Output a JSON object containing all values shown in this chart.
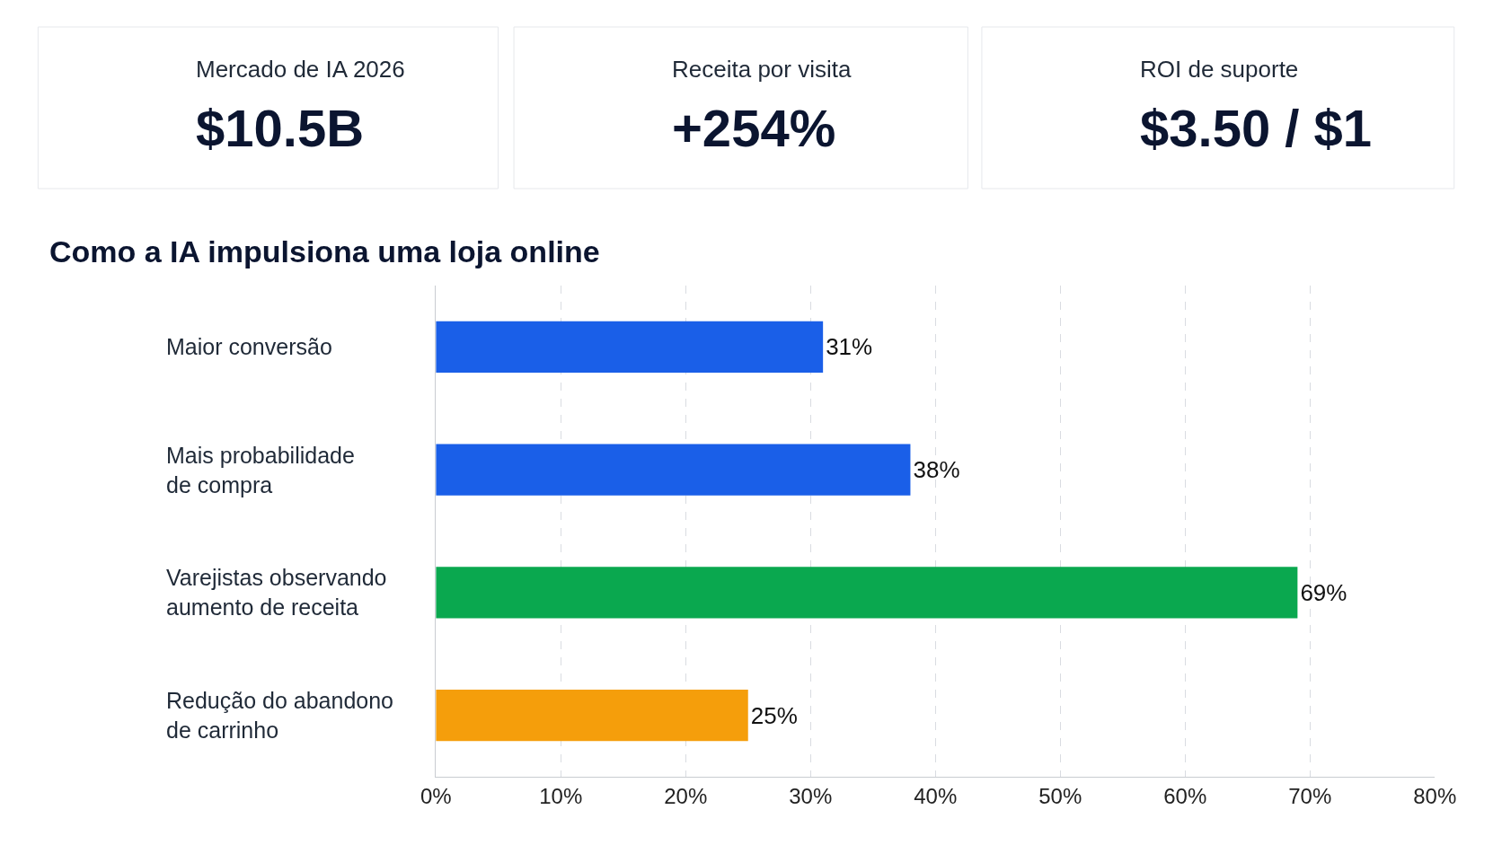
{
  "chart_data": [
    {
      "type": "other",
      "title": "Mercado de IA 2026",
      "annotations": [
        "$10.5B"
      ]
    },
    {
      "type": "other",
      "title": "Receita por visita",
      "annotations": [
        "+254%"
      ]
    },
    {
      "type": "other",
      "title": "ROI de suporte",
      "annotations": [
        "$3.50 / $1"
      ]
    },
    {
      "type": "bar",
      "orientation": "horizontal",
      "title": "Como a IA impulsiona uma loja online",
      "categories": [
        "Maior conversão",
        "Mais probabilidade\nde compra",
        "Varejistas observando\naumento de receita",
        "Redução do abandono\nde carrinho"
      ],
      "values": [
        31,
        38,
        69,
        25
      ],
      "colors": [
        "#1a5fe8",
        "#1a5fe8",
        "#0aa84f",
        "#f59e0b"
      ],
      "value_labels": [
        "31%",
        "38%",
        "69%",
        "25%"
      ],
      "xlim": [
        0,
        80
      ],
      "xticks": [
        {
          "value": 0,
          "label": "0%"
        },
        {
          "value": 10,
          "label": "10%"
        },
        {
          "value": 20,
          "label": "20%"
        },
        {
          "value": 30,
          "label": "30%"
        },
        {
          "value": 40,
          "label": "40%"
        },
        {
          "value": 50,
          "label": "50%"
        },
        {
          "value": 60,
          "label": "60%"
        },
        {
          "value": 70,
          "label": "70%"
        },
        {
          "value": 80,
          "label": "80%"
        }
      ],
      "grid": "x"
    }
  ]
}
